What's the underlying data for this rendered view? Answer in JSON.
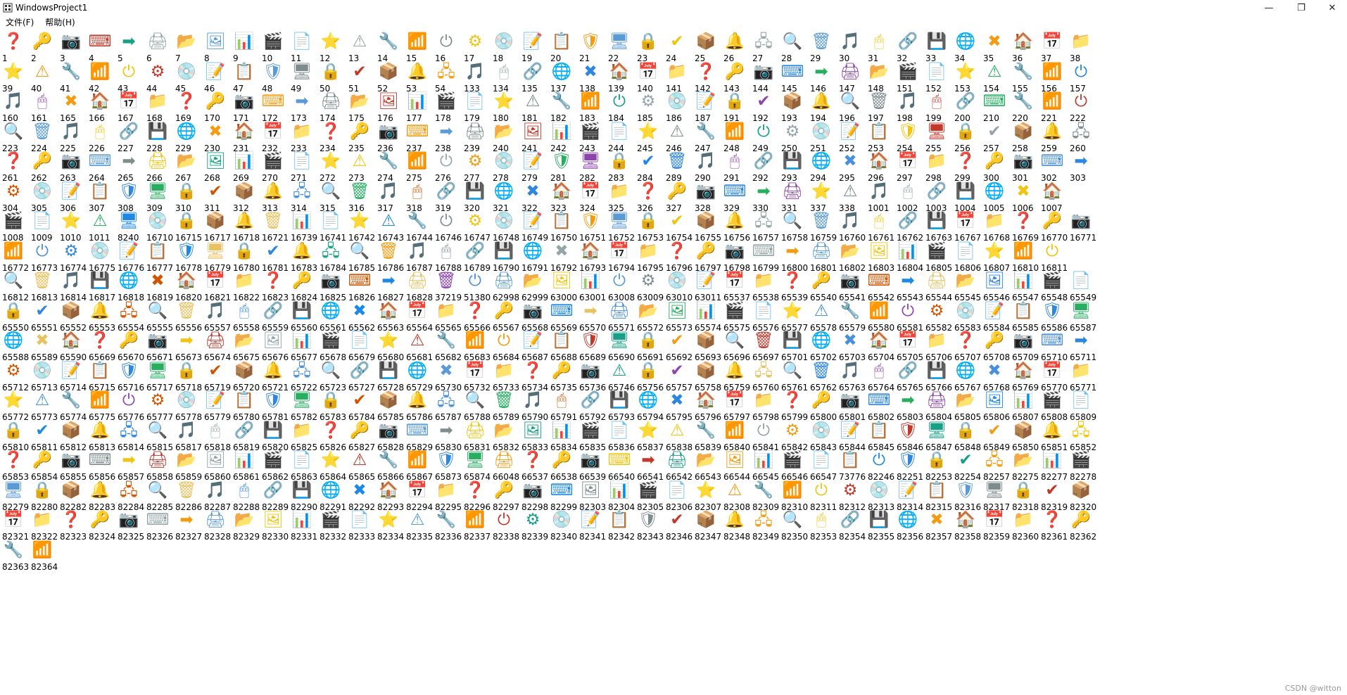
{
  "window": {
    "title": "WindowsProject1",
    "app_icon": "window-app-icon",
    "controls": {
      "minimize": "—",
      "maximize": "❐",
      "close": "✕"
    }
  },
  "menu": [
    "文件(F)",
    "帮助(H)"
  ],
  "watermark": "CSDN @witton",
  "icon_ids": [
    [
      1,
      2,
      3,
      4,
      5,
      6,
      7,
      8,
      9,
      10,
      11,
      12,
      13,
      14,
      15,
      16,
      17,
      18,
      19,
      20,
      21,
      22,
      23,
      24,
      25,
      26,
      27,
      28,
      29,
      30,
      31,
      32,
      33,
      34,
      35,
      36,
      37,
      38
    ],
    [
      39,
      40,
      41,
      42,
      43,
      44,
      45,
      46,
      47,
      48,
      49,
      50,
      51,
      52,
      53,
      54,
      133,
      134,
      135,
      137,
      138,
      139,
      140,
      141,
      142,
      143,
      144,
      145,
      146,
      147,
      148,
      151,
      152,
      153,
      154,
      155,
      156,
      157
    ],
    [
      160,
      161,
      165,
      166,
      167,
      168,
      169,
      170,
      171,
      172,
      173,
      174,
      175,
      176,
      177,
      178,
      179,
      180,
      181,
      182,
      183,
      184,
      185,
      186,
      187,
      191,
      192,
      193,
      194,
      196,
      197,
      198,
      199,
      200,
      210,
      220,
      221,
      222
    ],
    [
      223,
      224,
      225,
      226,
      227,
      228,
      229,
      230,
      231,
      232,
      233,
      234,
      235,
      236,
      237,
      238,
      239,
      240,
      241,
      242,
      243,
      244,
      245,
      246,
      247,
      248,
      249,
      250,
      251,
      252,
      253,
      254,
      255,
      256,
      257,
      258,
      259,
      260
    ],
    [
      261,
      262,
      263,
      264,
      265,
      266,
      267,
      268,
      269,
      270,
      271,
      272,
      273,
      274,
      275,
      276,
      277,
      278,
      279,
      281,
      282,
      283,
      284,
      289,
      290,
      291,
      292,
      293,
      294,
      295,
      296,
      297,
      298,
      299,
      300,
      301,
      302,
      303
    ],
    [
      304,
      305,
      306,
      307,
      308,
      309,
      310,
      311,
      312,
      313,
      314,
      315,
      316,
      317,
      318,
      319,
      320,
      321,
      322,
      323,
      324,
      325,
      326,
      327,
      328,
      329,
      330,
      331,
      337,
      338,
      1001,
      1002,
      1003,
      1004,
      1005,
      1006,
      1007
    ],
    [
      1008,
      1009,
      1010,
      1011,
      8240,
      16710,
      16715,
      16717,
      16718,
      16721,
      16739,
      16741,
      16742,
      16743,
      16744,
      16746,
      16747,
      16748,
      16749,
      16750,
      16751,
      16752,
      16753,
      16754,
      16755,
      16756,
      16757,
      16758,
      16759,
      16760,
      16761,
      16762,
      16763,
      16767,
      16768,
      16769,
      16770,
      16771
    ],
    [
      16772,
      16773,
      16774,
      16775,
      16776,
      16777,
      16778,
      16779,
      16780,
      16781,
      16783,
      16784,
      16785,
      16786,
      16787,
      16788,
      16789,
      16790,
      16791,
      16792,
      16793,
      16794,
      16795,
      16796,
      16797,
      16798,
      16799,
      16800,
      16801,
      16802,
      16803,
      16804,
      16805,
      16806,
      16807,
      16810,
      16811
    ],
    [
      16812,
      16813,
      16814,
      16817,
      16818,
      16819,
      16820,
      16821,
      16822,
      16823,
      16824,
      16825,
      16826,
      16827,
      16828,
      37219,
      51380,
      62998,
      62999,
      63000,
      63001,
      63008,
      63009,
      63010,
      63011,
      65537,
      65538,
      65539,
      65540,
      65541,
      65542,
      65543,
      65544,
      65545,
      65546,
      65547,
      65548,
      65549
    ],
    [
      65550,
      65551,
      65552,
      65553,
      65554,
      65555,
      65556,
      65557,
      65558,
      65559,
      65560,
      65561,
      65562,
      65563,
      65564,
      65565,
      65566,
      65567,
      65568,
      65569,
      65570,
      65571,
      65572,
      65573,
      65574,
      65575,
      65576,
      65577,
      65578,
      65579,
      65580,
      65581,
      65582,
      65583,
      65584,
      65585,
      65586,
      65587
    ],
    [
      65588,
      65589,
      65590,
      65669,
      65670,
      65671,
      65673,
      65674,
      65675,
      65676,
      65677,
      65678,
      65679,
      65680,
      65681,
      65682,
      65683,
      65684,
      65687,
      65688,
      65689,
      65690,
      65691,
      65692,
      65693,
      65696,
      65697,
      65701,
      65702,
      65703,
      65704,
      65705,
      65706,
      65707,
      65708,
      65709,
      65710,
      65711
    ],
    [
      65712,
      65713,
      65714,
      65715,
      65716,
      65717,
      65718,
      65719,
      65720,
      65721,
      65722,
      65723,
      65727,
      65728,
      65729,
      65730,
      65732,
      65733,
      65734,
      65735,
      65736,
      65746,
      65756,
      65757,
      65758,
      65759,
      65760,
      65761,
      65762,
      65763,
      65764,
      65765,
      65766,
      65767,
      65768,
      65769,
      65770,
      65771
    ],
    [
      65772,
      65773,
      65774,
      65775,
      65776,
      65777,
      65778,
      65779,
      65780,
      65781,
      65782,
      65783,
      65784,
      65785,
      65786,
      65787,
      65788,
      65789,
      65790,
      65791,
      65792,
      65793,
      65794,
      65795,
      65796,
      65797,
      65798,
      65799,
      65800,
      65801,
      65802,
      65803,
      65804,
      65805,
      65806,
      65807,
      65808,
      65809
    ],
    [
      65810,
      65811,
      65812,
      65813,
      65814,
      65815,
      65817,
      65818,
      65819,
      65820,
      65825,
      65826,
      65827,
      65828,
      65829,
      65830,
      65831,
      65832,
      65833,
      65834,
      65835,
      65836,
      65837,
      65838,
      65839,
      65840,
      65841,
      65842,
      65843,
      65844,
      65845,
      65846,
      65847,
      65848,
      65849,
      65850,
      65851,
      65852
    ],
    [
      65853,
      65854,
      65855,
      65856,
      65857,
      65858,
      65859,
      65860,
      65861,
      65862,
      65863,
      65864,
      65865,
      65866,
      65867,
      65873,
      65874,
      66048,
      66537,
      66538,
      66539,
      66540,
      66541,
      66542,
      66543,
      66544,
      66545,
      66546,
      66547,
      73776,
      82246,
      82251,
      82253,
      82254,
      82257,
      82275,
      82277,
      82278
    ],
    [
      82279,
      82280,
      82282,
      82283,
      82284,
      82285,
      82286,
      82287,
      82288,
      82289,
      82290,
      82291,
      82292,
      82293,
      82294,
      82295,
      82296,
      82297,
      82298,
      82299,
      82303,
      82304,
      82305,
      82306,
      82307,
      82308,
      82309,
      82310,
      82311,
      82312,
      82313,
      82314,
      82315,
      82316,
      82317,
      82318,
      82319,
      82320
    ],
    [
      82321,
      82322,
      82323,
      82324,
      82325,
      82326,
      82327,
      82328,
      82329,
      82330,
      82331,
      82332,
      82333,
      82334,
      82335,
      82336,
      82337,
      82338,
      82339,
      82340,
      82341,
      82342,
      82343,
      82346,
      82347,
      82348,
      82349,
      82350,
      82353,
      82354,
      82355,
      82356,
      82357,
      82358,
      82359,
      82360,
      82361,
      82362
    ],
    [
      82363,
      82364
    ]
  ]
}
